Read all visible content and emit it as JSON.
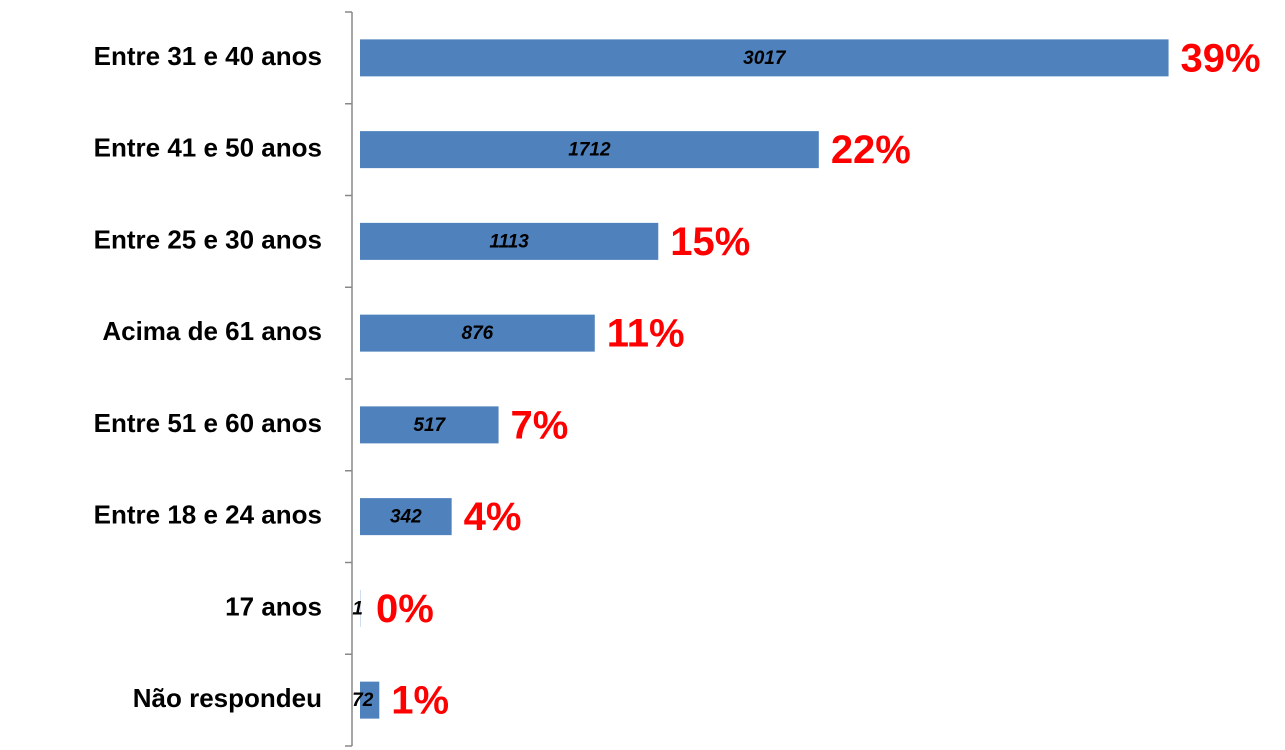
{
  "chart_data": {
    "type": "bar",
    "orientation": "horizontal",
    "categories": [
      "Entre 31 e 40 anos",
      "Entre 41 e 50 anos",
      "Entre 25 e 30 anos",
      "Acima de 61 anos",
      "Entre 51 e 60 anos",
      "Entre 18 e 24 anos",
      "17 anos",
      "Não respondeu"
    ],
    "values": [
      3017,
      1712,
      1113,
      876,
      517,
      342,
      1,
      72
    ],
    "percent_labels": [
      "39%",
      "22%",
      "15%",
      "11%",
      "7%",
      "4%",
      "0%",
      "1%"
    ],
    "color": "#4f81bd",
    "percent_color": "#ff0000"
  }
}
